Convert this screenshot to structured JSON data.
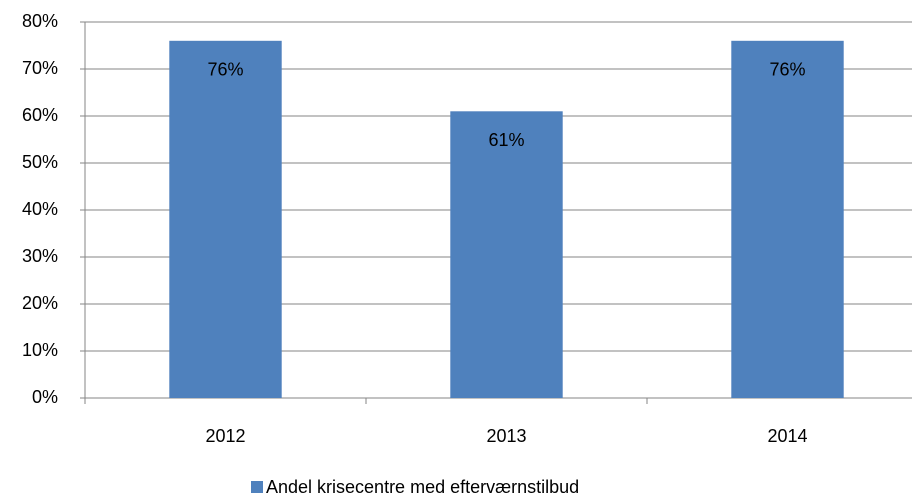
{
  "chart_data": {
    "type": "bar",
    "categories": [
      "2012",
      "2013",
      "2014"
    ],
    "series": [
      {
        "name": "Andel krisecentre med efterværnstilbud",
        "color": "#4f81bd",
        "values": [
          76,
          61,
          76
        ],
        "value_labels": [
          "76%",
          "61%",
          "76%"
        ]
      }
    ],
    "ylim": [
      0,
      80
    ],
    "yticks": [
      {
        "value": 0,
        "label": "0%"
      },
      {
        "value": 10,
        "label": "10%"
      },
      {
        "value": 20,
        "label": "20%"
      },
      {
        "value": 30,
        "label": "30%"
      },
      {
        "value": 40,
        "label": "40%"
      },
      {
        "value": 50,
        "label": "50%"
      },
      {
        "value": 60,
        "label": "60%"
      },
      {
        "value": 70,
        "label": "70%"
      },
      {
        "value": 80,
        "label": "80%"
      }
    ],
    "grid": true,
    "legend": "bottom"
  }
}
